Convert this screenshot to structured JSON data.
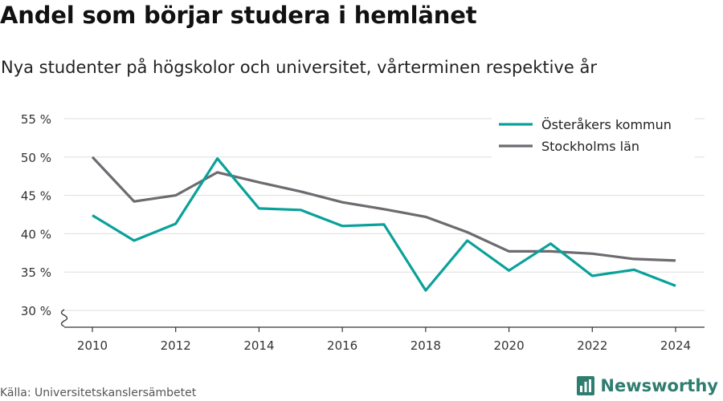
{
  "header": {
    "title": "Andel som börjar studera i hemlänet",
    "subtitle": "Nya studenter på högskolor och universitet, vårterminen respektive år"
  },
  "footer": {
    "source": "Källa: Universitetskanslersämbetet",
    "brand": "Newsworthy",
    "brand_icon": "bar-chart-logo-icon",
    "brand_color": "#2e7d6f"
  },
  "chart_data": {
    "type": "line",
    "title": "Andel som börjar studera i hemlänet",
    "subtitle": "Nya studenter på högskolor och universitet, vårterminen respektive år",
    "x": [
      2010,
      2011,
      2012,
      2013,
      2014,
      2015,
      2016,
      2017,
      2018,
      2019,
      2020,
      2021,
      2022,
      2023,
      2024
    ],
    "x_ticks": [
      "2010",
      "2012",
      "2014",
      "2016",
      "2018",
      "2020",
      "2022",
      "2024"
    ],
    "y_ticks": [
      "30 %",
      "35 %",
      "40 %",
      "45 %",
      "50 %",
      "55 %"
    ],
    "ylim": [
      30,
      55
    ],
    "y_axis_break": true,
    "grid": "horizontal",
    "legend_position": "top-right",
    "series": [
      {
        "name": "Österåkers kommun",
        "color": "#0aa19a",
        "values": [
          42.4,
          39.1,
          41.3,
          49.8,
          43.3,
          43.1,
          41.0,
          41.2,
          32.6,
          39.1,
          35.2,
          38.7,
          34.5,
          35.3,
          33.2
        ]
      },
      {
        "name": "Stockholms län",
        "color": "#6b6b70",
        "values": [
          50.0,
          44.2,
          45.0,
          48.0,
          46.7,
          45.5,
          44.1,
          43.2,
          42.2,
          40.2,
          37.7,
          37.7,
          37.4,
          36.7,
          36.5
        ]
      }
    ]
  }
}
